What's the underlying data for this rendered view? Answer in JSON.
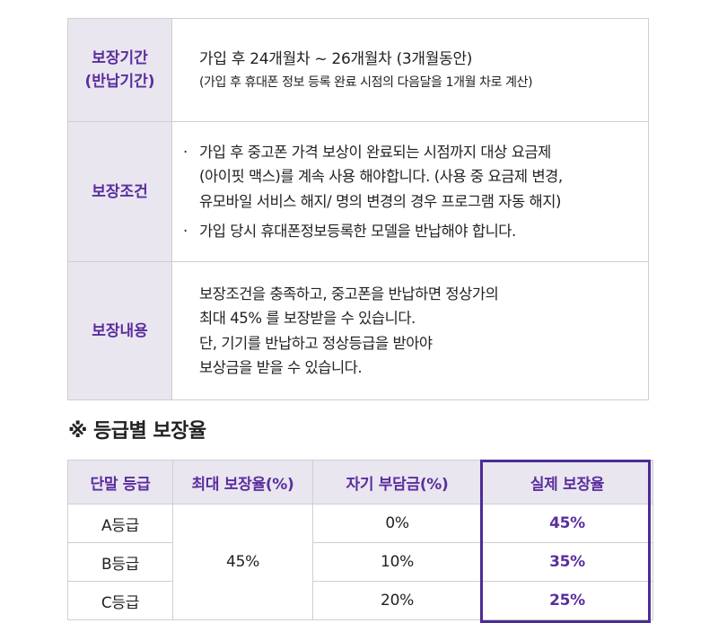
{
  "coverage": {
    "period": {
      "label": "보장기간\n(반납기간)",
      "main": "가입 후 24개월차 ~ 26개월차 (3개월동안)",
      "sub": "(가입 후 휴대폰 정보 등록 완료 시점의 다음달을 1개월 차로 계산)"
    },
    "conditions": {
      "label": "보장조건",
      "bullet_mark": "·",
      "bullet1": [
        "가입 후 중고폰 가격 보상이 완료되는 시점까지 대상 요금제",
        "(아이핏 맥스)를 계속 사용 해야합니다. (사용 중 요금제 변경,",
        "유모바일 서비스 해지/ 명의 변경의 경우 프로그램 자동 해지)"
      ],
      "bullet2": "가입 당시 휴대폰정보등록한 모델을 반납해야 합니다."
    },
    "details": {
      "label": "보장내용",
      "lines": [
        "보장조건을 충족하고, 중고폰을 반납하면 정상가의",
        "최대 45% 를 보장받을 수 있습니다.",
        "단, 기기를 반납하고 정상등급을 받아야",
        "보상금을 받을 수 있습니다."
      ]
    }
  },
  "grade_section": {
    "title": "※ 등급별 보장율",
    "headers": [
      "단말 등급",
      "최대 보장율(%)",
      "자기 부담금(%)",
      "실제 보장율"
    ],
    "max_rate": "45%",
    "rows": [
      {
        "grade": "A등급",
        "self_pay": "0%",
        "actual": "45%"
      },
      {
        "grade": "B등급",
        "self_pay": "10%",
        "actual": "35%"
      },
      {
        "grade": "C등급",
        "self_pay": "20%",
        "actual": "25%"
      }
    ]
  },
  "colors": {
    "accent": "#5b2e9e",
    "highlight_border": "#4b2c96",
    "header_bg": "#e9e6f0",
    "border": "#cfcfcf"
  }
}
